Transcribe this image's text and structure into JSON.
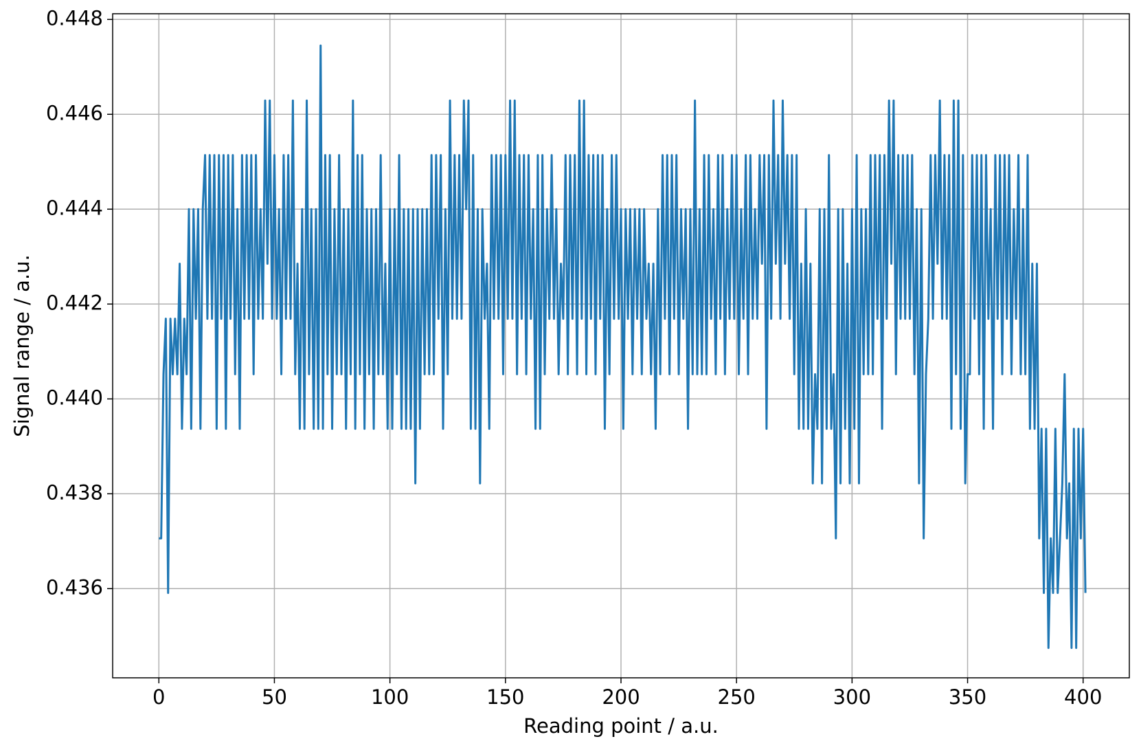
{
  "chart_data": {
    "type": "line",
    "xlabel": "Reading point / a.u.",
    "ylabel": "Signal range / a.u.",
    "xlim": [
      -20,
      420
    ],
    "xticks": [
      0,
      50,
      100,
      150,
      200,
      250,
      300,
      350,
      400
    ],
    "ylim": [
      0.43412,
      0.44812
    ],
    "yticks": [
      0.436,
      0.438,
      {
        "value": 0.44,
        "label": "0.440"
      },
      0.442,
      0.444,
      0.446,
      0.448
    ],
    "grid": true,
    "x": [
      0,
      1,
      2,
      3,
      4,
      5,
      6,
      7,
      8,
      9,
      10,
      11,
      12,
      13,
      14,
      15,
      16,
      17,
      18,
      19,
      20,
      21,
      22,
      23,
      24,
      25,
      26,
      27,
      28,
      29,
      30,
      31,
      32,
      33,
      34,
      35,
      36,
      37,
      38,
      39,
      40,
      41,
      42,
      43,
      44,
      45,
      46,
      47,
      48,
      49,
      50,
      51,
      52,
      53,
      54,
      55,
      56,
      57,
      58,
      59,
      60,
      61,
      62,
      63,
      64,
      65,
      66,
      67,
      68,
      69,
      70,
      71,
      72,
      73,
      74,
      75,
      76,
      77,
      78,
      79,
      80,
      81,
      82,
      83,
      84,
      85,
      86,
      87,
      88,
      89,
      90,
      91,
      92,
      93,
      94,
      95,
      96,
      97,
      98,
      99,
      100,
      101,
      102,
      103,
      104,
      105,
      106,
      107,
      108,
      109,
      110,
      111,
      112,
      113,
      114,
      115,
      116,
      117,
      118,
      119,
      120,
      121,
      122,
      123,
      124,
      125,
      126,
      127,
      128,
      129,
      130,
      131,
      132,
      133,
      134,
      135,
      136,
      137,
      138,
      139,
      140,
      141,
      142,
      143,
      144,
      145,
      146,
      147,
      148,
      149,
      150,
      151,
      152,
      153,
      154,
      155,
      156,
      157,
      158,
      159,
      160,
      161,
      162,
      163,
      164,
      165,
      166,
      167,
      168,
      169,
      170,
      171,
      172,
      173,
      174,
      175,
      176,
      177,
      178,
      179,
      180,
      181,
      182,
      183,
      184,
      185,
      186,
      187,
      188,
      189,
      190,
      191,
      192,
      193,
      194,
      195,
      196,
      197,
      198,
      199,
      200,
      201,
      202,
      203,
      204,
      205,
      206,
      207,
      208,
      209,
      210,
      211,
      212,
      213,
      214,
      215,
      216,
      217,
      218,
      219,
      220,
      221,
      222,
      223,
      224,
      225,
      226,
      227,
      228,
      229,
      230,
      231,
      232,
      233,
      234,
      235,
      236,
      237,
      238,
      239,
      240,
      241,
      242,
      243,
      244,
      245,
      246,
      247,
      248,
      249,
      250,
      251,
      252,
      253,
      254,
      255,
      256,
      257,
      258,
      259,
      260,
      261,
      262,
      263,
      264,
      265,
      266,
      267,
      268,
      269,
      270,
      271,
      272,
      273,
      274,
      275,
      276,
      277,
      278,
      279,
      280,
      281,
      282,
      283,
      284,
      285,
      286,
      287,
      288,
      289,
      290,
      291,
      292,
      293,
      294,
      295,
      296,
      297,
      298,
      299,
      300,
      301,
      302,
      303,
      304,
      305,
      306,
      307,
      308,
      309,
      310,
      311,
      312,
      313,
      314,
      315,
      316,
      317,
      318,
      319,
      320,
      321,
      322,
      323,
      324,
      325,
      326,
      327,
      328,
      329,
      330,
      331,
      332,
      333,
      334,
      335,
      336,
      337,
      338,
      339,
      340,
      341,
      342,
      343,
      344,
      345,
      346,
      347,
      348,
      349,
      350,
      351,
      352,
      353,
      354,
      355,
      356,
      357,
      358,
      359,
      360,
      361,
      362,
      363,
      364,
      365,
      366,
      367,
      368,
      369,
      370,
      371,
      372,
      373,
      374,
      375,
      376,
      377,
      378,
      379,
      380,
      381,
      382,
      383,
      384,
      385,
      386,
      387,
      388,
      389,
      390,
      391,
      392,
      393,
      394,
      395,
      396,
      397,
      398,
      399,
      400,
      401
    ],
    "series": [
      {
        "color": "#1f77b4",
        "values": [
          0.43706,
          0.43706,
          0.44052,
          0.44169,
          0.43591,
          0.44169,
          0.44052,
          0.44169,
          0.44052,
          0.44285,
          0.43937,
          0.44169,
          0.44052,
          0.444,
          0.43937,
          0.444,
          0.44169,
          0.444,
          0.43937,
          0.444,
          0.44514,
          0.44169,
          0.44514,
          0.44169,
          0.44514,
          0.43937,
          0.44514,
          0.44169,
          0.44514,
          0.43937,
          0.44514,
          0.44169,
          0.44514,
          0.44052,
          0.444,
          0.43937,
          0.44514,
          0.44169,
          0.44514,
          0.44169,
          0.44514,
          0.44052,
          0.44514,
          0.44169,
          0.444,
          0.44169,
          0.44629,
          0.44285,
          0.44629,
          0.44169,
          0.44514,
          0.44169,
          0.444,
          0.44052,
          0.44514,
          0.44169,
          0.44514,
          0.44169,
          0.44629,
          0.44052,
          0.44285,
          0.43937,
          0.444,
          0.43937,
          0.44629,
          0.44052,
          0.444,
          0.43937,
          0.444,
          0.43937,
          0.44745,
          0.43937,
          0.44514,
          0.44052,
          0.44514,
          0.43937,
          0.444,
          0.44052,
          0.44514,
          0.44052,
          0.444,
          0.43937,
          0.444,
          0.44052,
          0.44629,
          0.43937,
          0.44514,
          0.44052,
          0.44514,
          0.43937,
          0.444,
          0.44052,
          0.444,
          0.43937,
          0.444,
          0.44052,
          0.44514,
          0.44052,
          0.44285,
          0.43937,
          0.444,
          0.43937,
          0.444,
          0.44052,
          0.44514,
          0.43937,
          0.444,
          0.43937,
          0.444,
          0.43937,
          0.444,
          0.43822,
          0.444,
          0.43937,
          0.444,
          0.44052,
          0.444,
          0.44052,
          0.44514,
          0.44052,
          0.44514,
          0.44169,
          0.44514,
          0.43937,
          0.444,
          0.44052,
          0.44629,
          0.44169,
          0.44514,
          0.44169,
          0.44514,
          0.44169,
          0.44629,
          0.444,
          0.44629,
          0.43937,
          0.44514,
          0.43937,
          0.444,
          0.43822,
          0.444,
          0.44169,
          0.44285,
          0.43937,
          0.44514,
          0.44169,
          0.44514,
          0.44169,
          0.44514,
          0.44052,
          0.44514,
          0.44169,
          0.44629,
          0.44169,
          0.44629,
          0.44052,
          0.44514,
          0.44169,
          0.44514,
          0.44052,
          0.44514,
          0.44169,
          0.444,
          0.43937,
          0.44514,
          0.43937,
          0.44514,
          0.44052,
          0.444,
          0.44169,
          0.44514,
          0.44169,
          0.444,
          0.44052,
          0.44285,
          0.44169,
          0.44514,
          0.44052,
          0.44514,
          0.44169,
          0.44514,
          0.44052,
          0.44629,
          0.44169,
          0.44629,
          0.44052,
          0.44514,
          0.44169,
          0.44514,
          0.44052,
          0.44514,
          0.44169,
          0.44514,
          0.43937,
          0.444,
          0.44052,
          0.44514,
          0.44169,
          0.44514,
          0.44169,
          0.444,
          0.43937,
          0.444,
          0.44169,
          0.444,
          0.44052,
          0.444,
          0.44169,
          0.444,
          0.44052,
          0.444,
          0.44169,
          0.44285,
          0.44052,
          0.44285,
          0.43937,
          0.444,
          0.44052,
          0.44514,
          0.44169,
          0.44514,
          0.44052,
          0.44514,
          0.44169,
          0.44514,
          0.44052,
          0.444,
          0.44169,
          0.444,
          0.43937,
          0.444,
          0.44052,
          0.44629,
          0.44052,
          0.444,
          0.44052,
          0.44514,
          0.44052,
          0.44514,
          0.44169,
          0.444,
          0.44052,
          0.44514,
          0.44169,
          0.44514,
          0.44052,
          0.444,
          0.44169,
          0.44514,
          0.44169,
          0.44514,
          0.44052,
          0.444,
          0.44169,
          0.44514,
          0.44052,
          0.44514,
          0.44169,
          0.444,
          0.44169,
          0.44514,
          0.44285,
          0.44514,
          0.43937,
          0.44514,
          0.44169,
          0.44629,
          0.44285,
          0.44514,
          0.44169,
          0.44629,
          0.44285,
          0.44514,
          0.44169,
          0.44514,
          0.44052,
          0.44514,
          0.43937,
          0.44285,
          0.43937,
          0.444,
          0.43937,
          0.44285,
          0.43822,
          0.44052,
          0.43937,
          0.444,
          0.43822,
          0.444,
          0.43937,
          0.44514,
          0.43937,
          0.44052,
          0.43706,
          0.444,
          0.43822,
          0.444,
          0.43937,
          0.44285,
          0.43822,
          0.444,
          0.43937,
          0.44514,
          0.43822,
          0.444,
          0.44052,
          0.444,
          0.44052,
          0.44514,
          0.44052,
          0.44514,
          0.44169,
          0.44514,
          0.43937,
          0.44514,
          0.44169,
          0.44629,
          0.44285,
          0.44629,
          0.44052,
          0.44514,
          0.44169,
          0.44514,
          0.44169,
          0.44514,
          0.44169,
          0.44514,
          0.44052,
          0.444,
          0.43822,
          0.444,
          0.43706,
          0.44052,
          0.44169,
          0.44514,
          0.44169,
          0.44514,
          0.44285,
          0.44629,
          0.44169,
          0.44514,
          0.44169,
          0.44514,
          0.43937,
          0.44629,
          0.44052,
          0.44629,
          0.43937,
          0.44514,
          0.43822,
          0.44052,
          0.44052,
          0.44514,
          0.44169,
          0.44514,
          0.44052,
          0.44514,
          0.43937,
          0.44514,
          0.44169,
          0.444,
          0.43937,
          0.44514,
          0.44169,
          0.44514,
          0.44052,
          0.44514,
          0.44169,
          0.44514,
          0.44052,
          0.444,
          0.44169,
          0.44514,
          0.44052,
          0.444,
          0.44052,
          0.44514,
          0.43937,
          0.44285,
          0.43937,
          0.44285,
          0.43706,
          0.43937,
          0.43591,
          0.43937,
          0.43475,
          0.43706,
          0.43591,
          0.43937,
          0.43591,
          0.43706,
          0.43822,
          0.44052,
          0.43706,
          0.43822,
          0.43475,
          0.43937,
          0.43475,
          0.43937,
          0.43706,
          0.43937,
          0.43591
        ]
      }
    ]
  }
}
